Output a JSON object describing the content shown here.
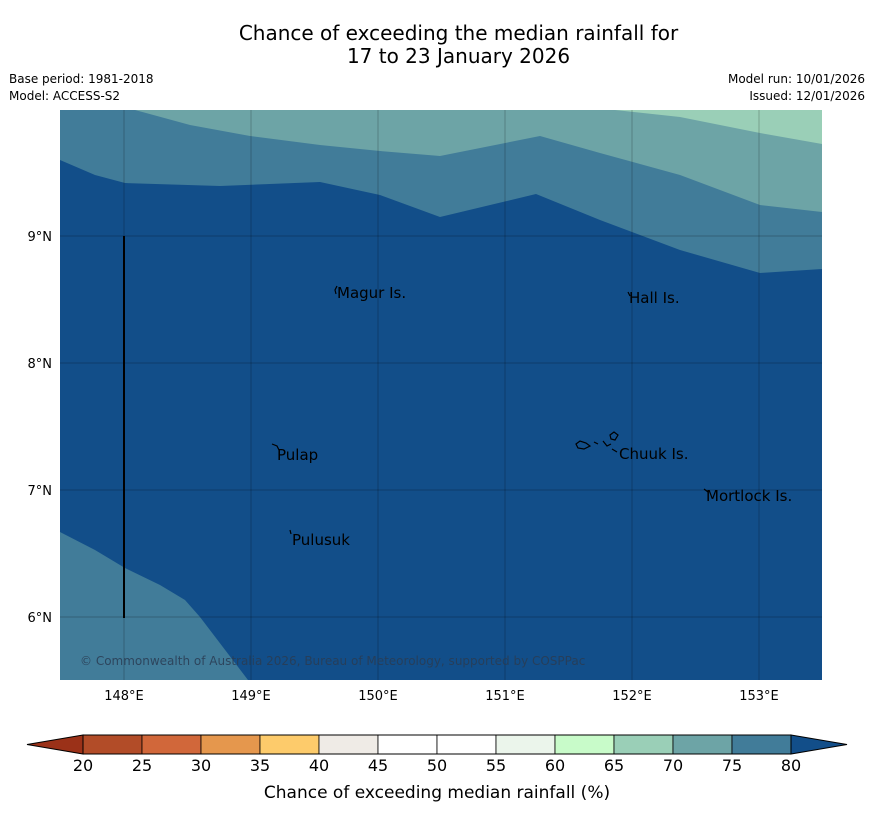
{
  "title": {
    "line1": "Chance of exceeding the median rainfall for",
    "line2": "17 to 23 January 2026"
  },
  "meta": {
    "base_period": "Base period: 1981-2018",
    "model": "Model: ACCESS-S2",
    "model_run": "Model run: 10/01/2026",
    "issued": "Issued: 12/01/2026"
  },
  "map": {
    "lon_ticks": [
      "148°E",
      "149°E",
      "150°E",
      "151°E",
      "152°E",
      "153°E"
    ],
    "lat_ticks": [
      "9°N",
      "8°N",
      "7°N",
      "6°N"
    ],
    "places": [
      {
        "name": "Magur Is.",
        "lon": 149.68,
        "lat": 8.57
      },
      {
        "name": "Hall Is.",
        "lon": 151.98,
        "lat": 8.53
      },
      {
        "name": "Pulap",
        "lon": 149.18,
        "lat": 7.34
      },
      {
        "name": "Chuuk Is.",
        "lon": 151.84,
        "lat": 7.35
      },
      {
        "name": "Mortlock Is.",
        "lon": 152.58,
        "lat": 7.0
      },
      {
        "name": "Pulusuk",
        "lon": 149.29,
        "lat": 6.68
      }
    ],
    "copyright": "© Commonwealth of Australia 2026, Bureau of Meteorology, supported by COSPPac",
    "colors": {
      "band_80_plus": "#124e89",
      "band_75_80": "#417c99",
      "band_70_75": "#6da4a6",
      "band_65_70": "#9acfb7"
    }
  },
  "colorbar": {
    "label": "Chance of exceeding median rainfall (%)",
    "ticks": [
      "20",
      "25",
      "30",
      "35",
      "40",
      "45",
      "50",
      "55",
      "60",
      "65",
      "70",
      "75",
      "80"
    ],
    "low_color": "#9b3118",
    "high_color": "#124e89",
    "colors": [
      "#b24c28",
      "#d1673a",
      "#e5974d",
      "#fdcb6b",
      "#efebe6",
      "#ffffff",
      "#ffffff",
      "#ebf5eb",
      "#c8fbc9",
      "#9acfb7",
      "#6da4a6",
      "#417c99"
    ]
  }
}
